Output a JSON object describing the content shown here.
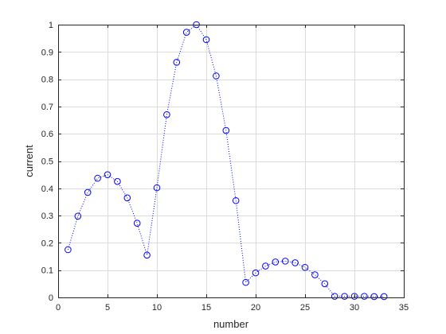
{
  "chart_data": {
    "type": "line",
    "title": "",
    "xlabel": "number",
    "ylabel": "current",
    "xlim": [
      0,
      35
    ],
    "ylim": [
      0,
      1
    ],
    "xticks": [
      0,
      5,
      10,
      15,
      20,
      25,
      30,
      35
    ],
    "yticks": [
      0,
      0.1,
      0.2,
      0.3,
      0.4,
      0.5,
      0.6,
      0.7,
      0.8,
      0.9,
      1
    ],
    "grid": true,
    "legend": "none",
    "line_style": "dotted",
    "marker": "circle",
    "color": "#0000ff",
    "series": [
      {
        "x": [
          1,
          2,
          3,
          4,
          5,
          6,
          7,
          8,
          9,
          10,
          11,
          12,
          13,
          14,
          15,
          16,
          17,
          18,
          19,
          20,
          21,
          22,
          23,
          24,
          25,
          26,
          27,
          28,
          29,
          30,
          31,
          32,
          33
        ],
        "y": [
          0.175,
          0.298,
          0.385,
          0.437,
          0.45,
          0.425,
          0.365,
          0.272,
          0.155,
          0.402,
          0.67,
          0.862,
          0.972,
          1.0,
          0.945,
          0.812,
          0.612,
          0.355,
          0.055,
          0.09,
          0.115,
          0.13,
          0.133,
          0.127,
          0.11,
          0.083,
          0.05,
          0.004,
          0.004,
          0.004,
          0.004,
          0.003,
          0.003
        ]
      }
    ]
  }
}
